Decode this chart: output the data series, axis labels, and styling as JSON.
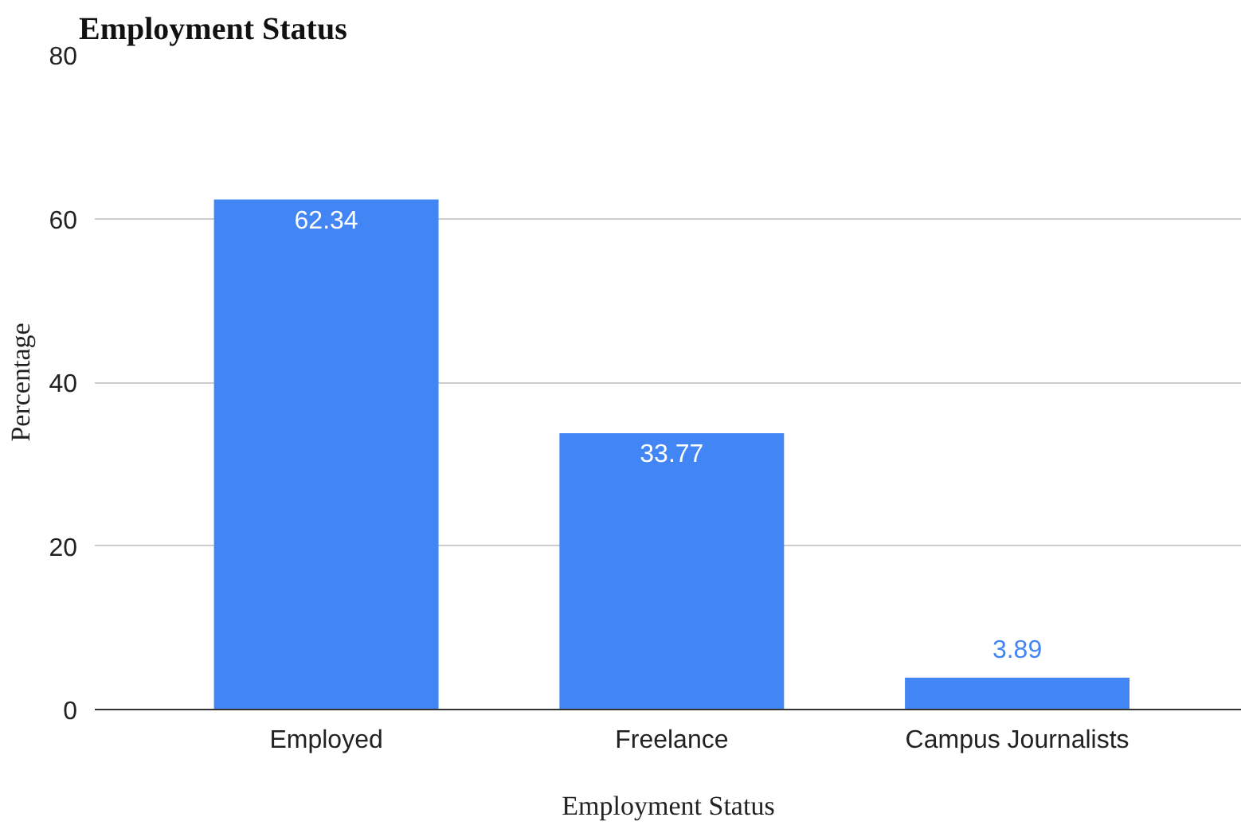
{
  "chart_data": {
    "type": "bar",
    "title": "Employment Status",
    "xlabel": "Employment Status",
    "ylabel": "Percentage",
    "categories": [
      "Employed",
      "Freelance",
      "Campus Journalists"
    ],
    "values": [
      62.34,
      33.77,
      3.89
    ],
    "color": "#4285f4",
    "ylim": [
      0,
      80
    ],
    "yticks": [
      0,
      20,
      40,
      60,
      80
    ],
    "grid": "y",
    "data_labels": true
  }
}
